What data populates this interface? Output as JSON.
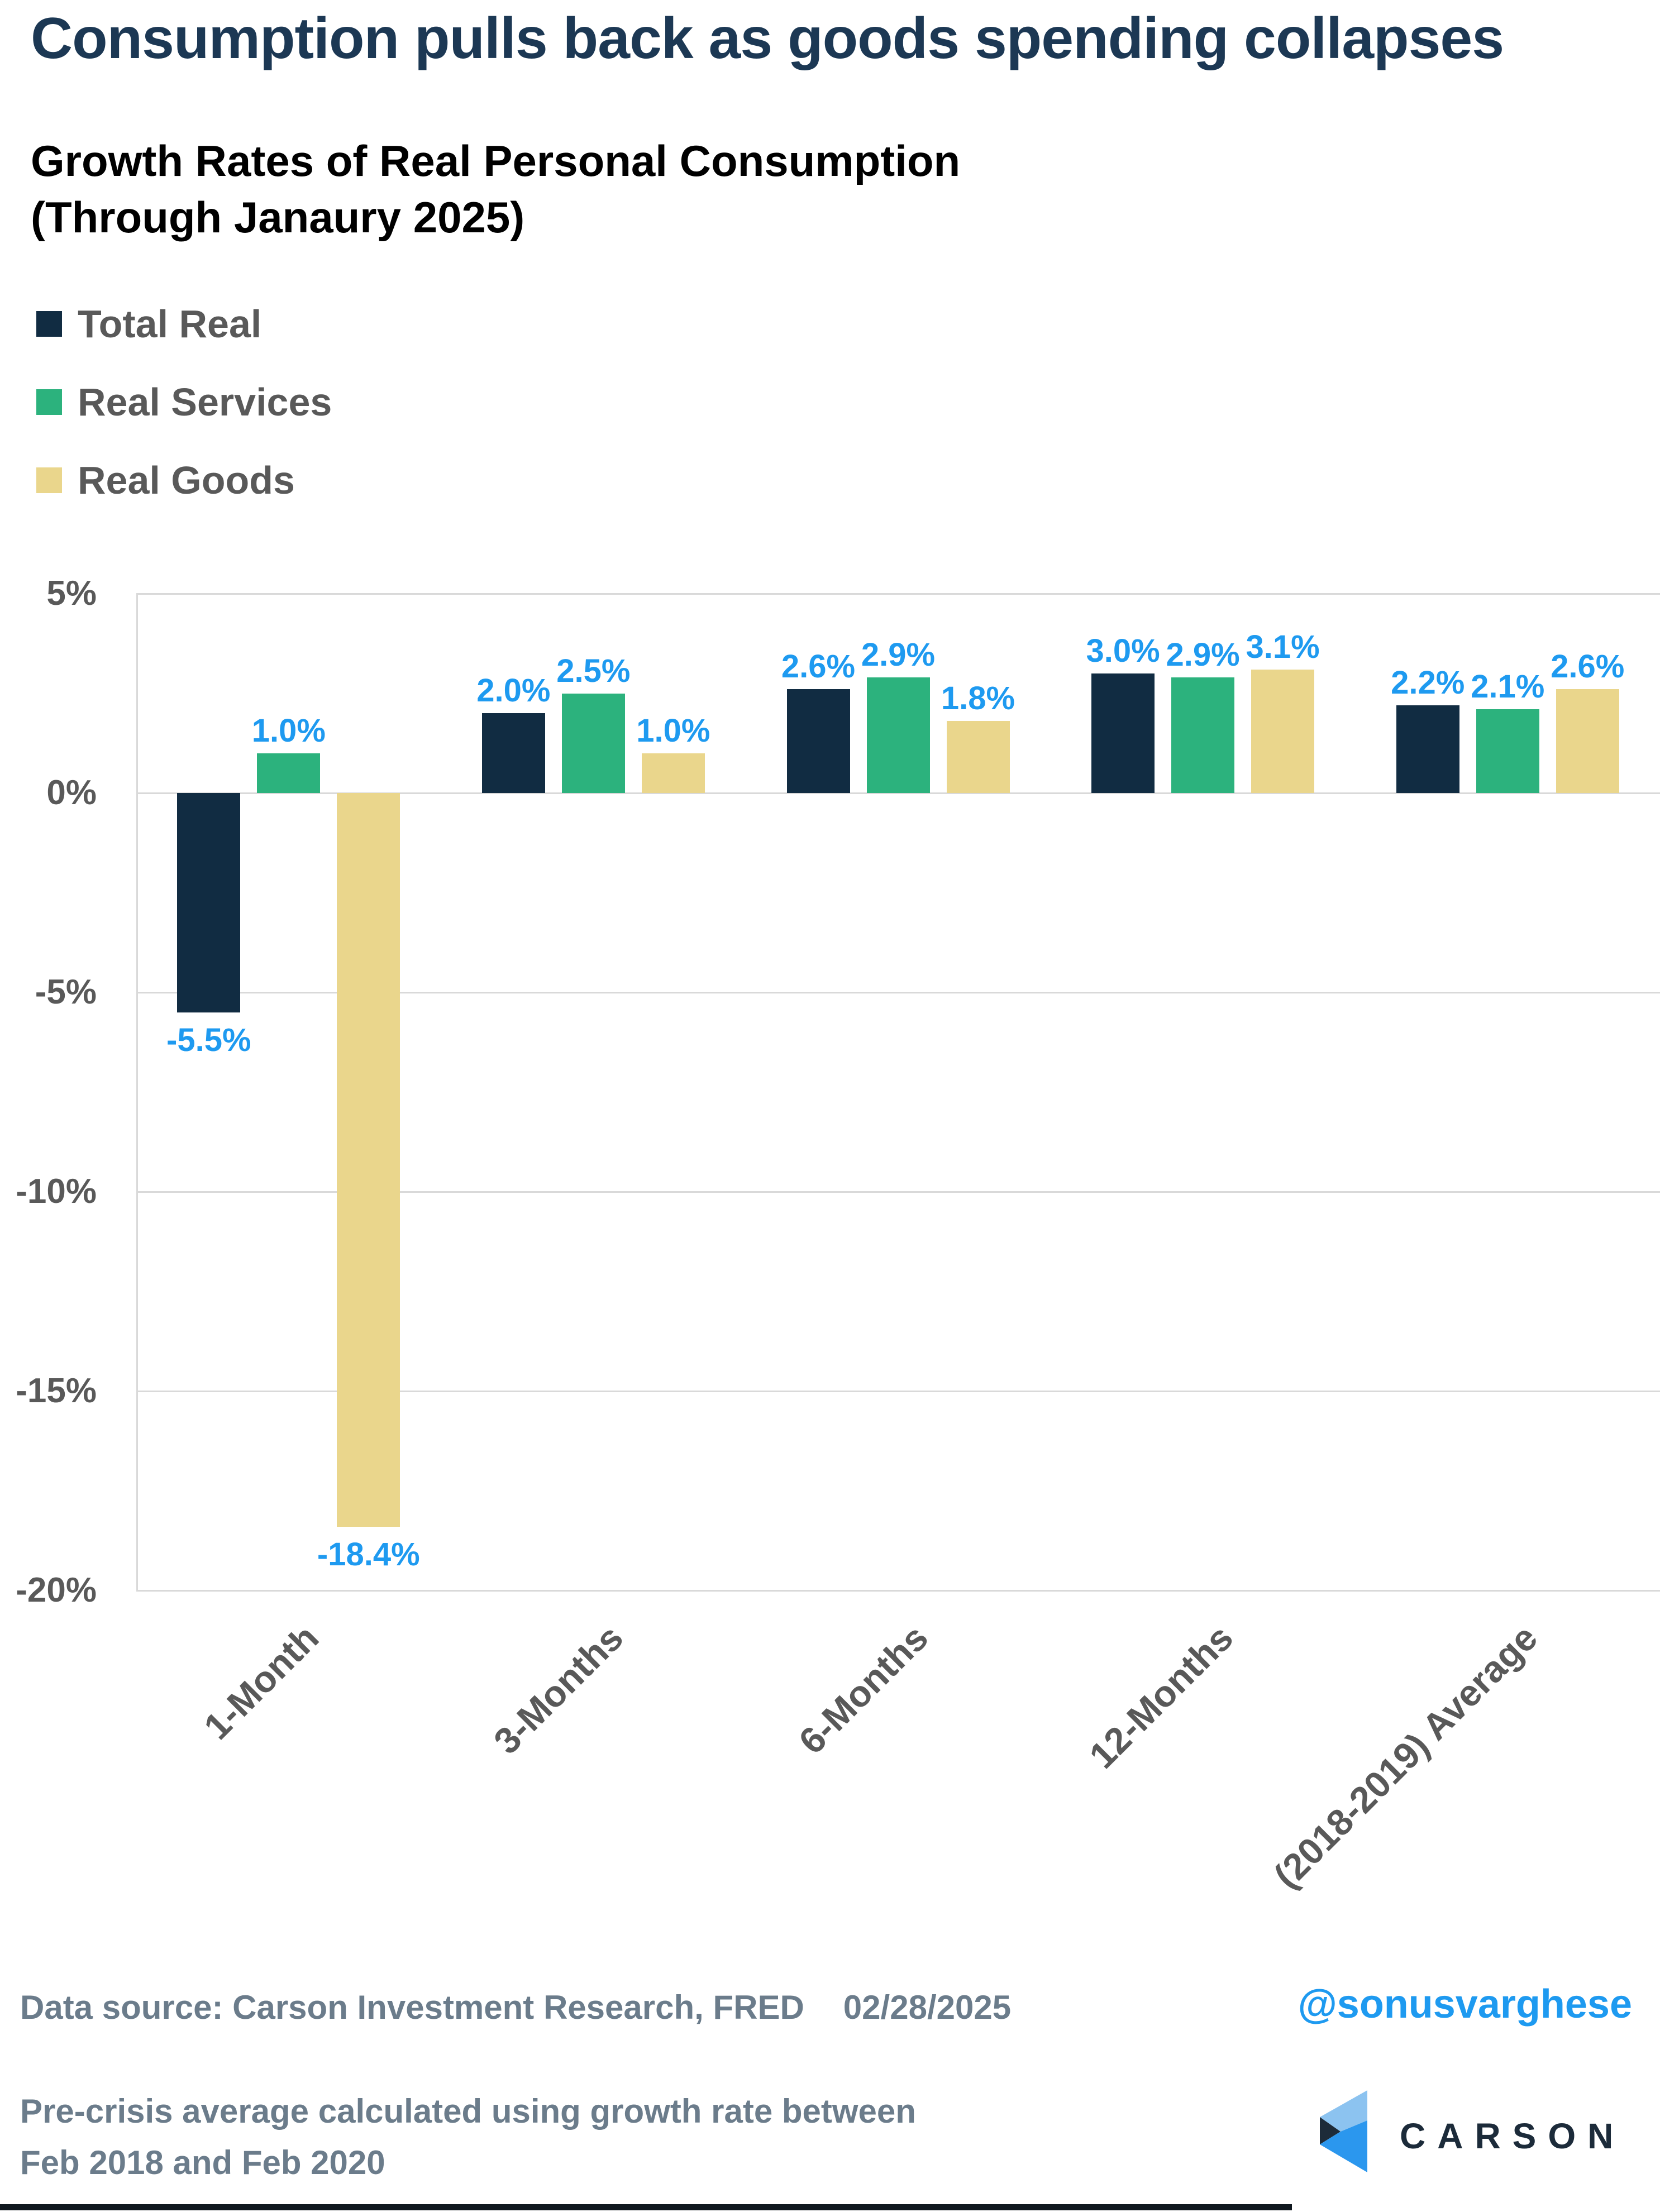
{
  "title": "Consumption pulls back as goods spending collapses",
  "subtitle": {
    "line1": "Growth Rates of Real Personal Consumption",
    "line2": "(Through Janaury 2025)"
  },
  "legend": {
    "items": [
      {
        "label": "Total Real",
        "color": "#112c42"
      },
      {
        "label": "Real Services",
        "color": "#2cb27d"
      },
      {
        "label": "Real Goods",
        "color": "#ead68c"
      }
    ]
  },
  "chart_data": {
    "type": "bar",
    "categories": [
      "1-Month",
      "3-Months",
      "6-Months",
      "12-Months",
      "(2018-2019) Average"
    ],
    "series": [
      {
        "name": "Total Real",
        "color": "#112c42",
        "values": [
          -5.5,
          2.0,
          2.6,
          3.0,
          2.2
        ]
      },
      {
        "name": "Real Services",
        "color": "#2cb27d",
        "values": [
          1.0,
          2.5,
          2.9,
          2.9,
          2.1
        ]
      },
      {
        "name": "Real Goods",
        "color": "#ead68c",
        "values": [
          -18.4,
          1.0,
          1.8,
          3.1,
          2.6
        ]
      }
    ],
    "title": "Growth Rates of Real Personal Consumption (Through Janaury 2025)",
    "xlabel": "",
    "ylabel": "",
    "ylim": [
      -20,
      5
    ],
    "yticks": [
      5,
      0,
      -5,
      -10,
      -15,
      -20
    ],
    "ytick_labels": [
      "5%",
      "0%",
      "-5%",
      "-10%",
      "-15%",
      "-20%"
    ],
    "grid": true,
    "legend_position": "top-left",
    "data_label_format": "0.0%",
    "category_label_rotation": -45
  },
  "footer": {
    "source": "Data source: Carson Investment Research, FRED",
    "date": "02/28/2025",
    "handle": "@sonusvarghese",
    "note_line1": "Pre-crisis average calculated using growth rate between",
    "note_line2": "Feb 2018 and Feb 2020",
    "logo_text": "CARSON"
  },
  "colors": {
    "title": "#1c3854",
    "axis_text": "#595959",
    "grid": "#d9d9d9",
    "data_label": "#1e9af0",
    "footer_text": "#6b7c8b",
    "handle": "#1e9af0",
    "logo_light": "#8cc3f0",
    "logo_dark": "#1d2b39",
    "logo_bright": "#2b97ee",
    "logo_word": "#1c2b3a",
    "bottom_bar": "#10181f"
  }
}
